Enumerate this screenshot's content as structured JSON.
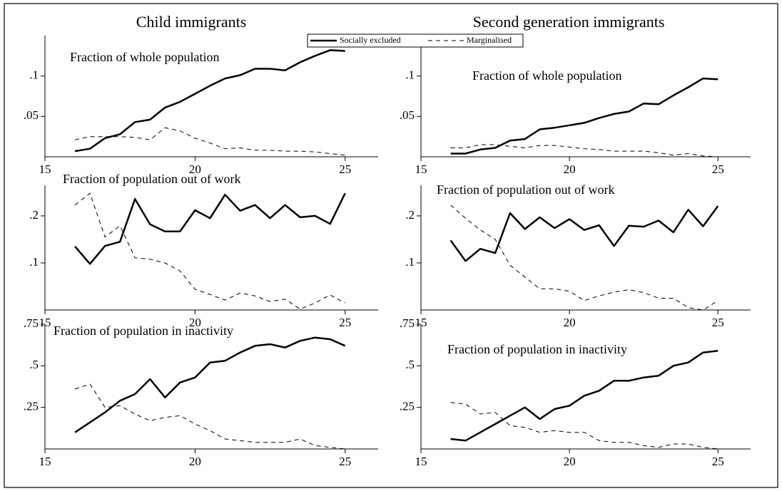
{
  "column_titles": [
    "Child immigrants",
    "Second generation immigrants"
  ],
  "chart_data": [
    {
      "type": "line",
      "subtitle": "Fraction of whole population",
      "x": [
        16,
        16.5,
        17,
        17.5,
        18,
        18.5,
        19,
        19.5,
        20,
        20.5,
        21,
        21.5,
        22,
        22.5,
        23,
        23.5,
        24,
        24.5,
        25
      ],
      "series": [
        {
          "name": "Socially excluded",
          "color": "#000000",
          "style": "solid",
          "values": [
            0.007,
            0.01,
            0.023,
            0.028,
            0.043,
            0.046,
            0.061,
            0.068,
            0.078,
            0.088,
            0.097,
            0.101,
            0.109,
            0.109,
            0.107,
            0.117,
            0.125,
            0.132,
            0.131
          ]
        },
        {
          "name": "Marginalised",
          "color": "#000000",
          "style": "dashed",
          "values": [
            0.021,
            0.025,
            0.025,
            0.025,
            0.024,
            0.021,
            0.036,
            0.032,
            0.023,
            0.017,
            0.01,
            0.011,
            0.008,
            0.008,
            0.007,
            0.007,
            0.006,
            0.004,
            0.002
          ]
        }
      ],
      "xlim": [
        15,
        26.1
      ],
      "xticks": [
        15,
        20,
        25
      ],
      "ylim": [
        0,
        0.15
      ],
      "yticks": [
        {
          "value": 0.05,
          "label": ".05"
        },
        {
          "value": 0.1,
          "label": ".1"
        }
      ]
    },
    {
      "type": "line",
      "subtitle": "Fraction of whole population",
      "x": [
        16,
        16.5,
        17,
        17.5,
        18,
        18.5,
        19,
        19.5,
        20,
        20.5,
        21,
        21.5,
        22,
        22.5,
        23,
        23.5,
        24,
        24.5,
        25
      ],
      "series": [
        {
          "name": "Socially excluded",
          "color": "#000000",
          "style": "solid",
          "values": [
            0.004,
            0.004,
            0.009,
            0.011,
            0.02,
            0.022,
            0.034,
            0.036,
            0.039,
            0.042,
            0.048,
            0.053,
            0.056,
            0.066,
            0.065,
            0.076,
            0.086,
            0.097,
            0.096
          ]
        },
        {
          "name": "Marginalised",
          "color": "#000000",
          "style": "dashed",
          "values": [
            0.011,
            0.011,
            0.015,
            0.015,
            0.013,
            0.011,
            0.014,
            0.014,
            0.012,
            0.01,
            0.009,
            0.007,
            0.007,
            0.007,
            0.005,
            0.002,
            0.004,
            0.001,
            0
          ]
        }
      ],
      "xlim": [
        15,
        26.1
      ],
      "xticks": [
        15,
        20,
        25
      ],
      "ylim": [
        0,
        0.15
      ],
      "yticks": [
        {
          "value": 0.05,
          "label": ".05"
        },
        {
          "value": 0.1,
          "label": ".1"
        }
      ]
    },
    {
      "type": "line",
      "subtitle": "Fraction of population out of work",
      "x": [
        16,
        16.5,
        17,
        17.5,
        18,
        18.5,
        19,
        19.5,
        20,
        20.5,
        21,
        21.5,
        22,
        22.5,
        23,
        23.5,
        24,
        24.5,
        25
      ],
      "series": [
        {
          "name": "Socially excluded",
          "color": "#000000",
          "style": "solid",
          "values": [
            0.135,
            0.098,
            0.136,
            0.145,
            0.236,
            0.182,
            0.167,
            0.167,
            0.212,
            0.195,
            0.245,
            0.211,
            0.223,
            0.195,
            0.223,
            0.197,
            0.2,
            0.183,
            0.248
          ]
        },
        {
          "name": "Marginalised",
          "color": "#000000",
          "style": "dashed",
          "values": [
            0.223,
            0.248,
            0.155,
            0.179,
            0.111,
            0.108,
            0.1,
            0.083,
            0.044,
            0.033,
            0.021,
            0.036,
            0.03,
            0.018,
            0.023,
            0.002,
            0.015,
            0.032,
            0.015
          ]
        }
      ],
      "xlim": [
        15,
        26.1
      ],
      "xticks": [
        15,
        20,
        25
      ],
      "ylim": [
        0,
        0.265
      ],
      "yticks": [
        {
          "value": 0.1,
          "label": ".1"
        },
        {
          "value": 0.2,
          "label": ".2"
        }
      ]
    },
    {
      "type": "line",
      "subtitle": "Fraction of population out of work",
      "x": [
        16,
        16.5,
        17,
        17.5,
        18,
        18.5,
        19,
        19.5,
        20,
        20.5,
        21,
        21.5,
        22,
        22.5,
        23,
        23.5,
        24,
        24.5,
        25
      ],
      "series": [
        {
          "name": "Socially excluded",
          "color": "#000000",
          "style": "solid",
          "values": [
            0.148,
            0.104,
            0.13,
            0.121,
            0.206,
            0.172,
            0.197,
            0.174,
            0.193,
            0.17,
            0.18,
            0.136,
            0.179,
            0.177,
            0.19,
            0.165,
            0.213,
            0.178,
            0.221
          ]
        },
        {
          "name": "Marginalised",
          "color": "#000000",
          "style": "dashed",
          "values": [
            0.223,
            0.195,
            0.17,
            0.15,
            0.095,
            0.07,
            0.045,
            0.045,
            0.04,
            0.02,
            0.03,
            0.038,
            0.043,
            0.037,
            0.025,
            0.025,
            0.005,
            0,
            0.02
          ]
        }
      ],
      "xlim": [
        15,
        26.1
      ],
      "xticks": [
        15,
        20,
        25
      ],
      "ylim": [
        0,
        0.265
      ],
      "yticks": [
        {
          "value": 0.1,
          "label": ".1"
        },
        {
          "value": 0.2,
          "label": ".2"
        }
      ]
    },
    {
      "type": "line",
      "subtitle": "Fraction of population in inactivity",
      "x": [
        16,
        16.5,
        17,
        17.5,
        18,
        18.5,
        19,
        19.5,
        20,
        20.5,
        21,
        21.5,
        22,
        22.5,
        23,
        23.5,
        24,
        24.5,
        25
      ],
      "series": [
        {
          "name": "Socially excluded",
          "color": "#000000",
          "style": "solid",
          "values": [
            0.1,
            0.16,
            0.22,
            0.29,
            0.33,
            0.42,
            0.31,
            0.4,
            0.43,
            0.52,
            0.53,
            0.58,
            0.62,
            0.63,
            0.61,
            0.65,
            0.67,
            0.66,
            0.62
          ]
        },
        {
          "name": "Marginalised",
          "color": "#000000",
          "style": "dashed",
          "values": [
            0.36,
            0.39,
            0.25,
            0.26,
            0.21,
            0.17,
            0.19,
            0.2,
            0.15,
            0.11,
            0.06,
            0.05,
            0.04,
            0.04,
            0.04,
            0.06,
            0.02,
            0.01,
            0
          ]
        }
      ],
      "xlim": [
        15,
        26.1
      ],
      "xticks": [
        15,
        20,
        25
      ],
      "ylim": [
        0,
        0.75
      ],
      "yticks": [
        {
          "value": 0.25,
          "label": ".25"
        },
        {
          "value": 0.5,
          "label": ".5"
        },
        {
          "value": 0.75,
          "label": ".75"
        }
      ]
    },
    {
      "type": "line",
      "subtitle": "Fraction of population in inactivity",
      "x": [
        16,
        16.5,
        17,
        17.5,
        18,
        18.5,
        19,
        19.5,
        20,
        20.5,
        21,
        21.5,
        22,
        22.5,
        23,
        23.5,
        24,
        24.5,
        25
      ],
      "series": [
        {
          "name": "Socially excluded",
          "color": "#000000",
          "style": "solid",
          "values": [
            0.06,
            0.05,
            0.1,
            0.15,
            0.2,
            0.25,
            0.18,
            0.24,
            0.26,
            0.32,
            0.35,
            0.41,
            0.41,
            0.43,
            0.44,
            0.5,
            0.52,
            0.58,
            0.59
          ]
        },
        {
          "name": "Marginalised",
          "color": "#000000",
          "style": "dashed",
          "values": [
            0.28,
            0.27,
            0.21,
            0.22,
            0.14,
            0.13,
            0.1,
            0.11,
            0.1,
            0.1,
            0.05,
            0.04,
            0.04,
            0.02,
            0.01,
            0.03,
            0.03,
            0.01,
            0
          ]
        }
      ],
      "xlim": [
        15,
        26.1
      ],
      "xticks": [
        15,
        20,
        25
      ],
      "ylim": [
        0,
        0.75
      ],
      "yticks": [
        {
          "value": 0.25,
          "label": ".25"
        },
        {
          "value": 0.5,
          "label": ".5"
        },
        {
          "value": 0.75,
          "label": ".75"
        }
      ]
    }
  ]
}
